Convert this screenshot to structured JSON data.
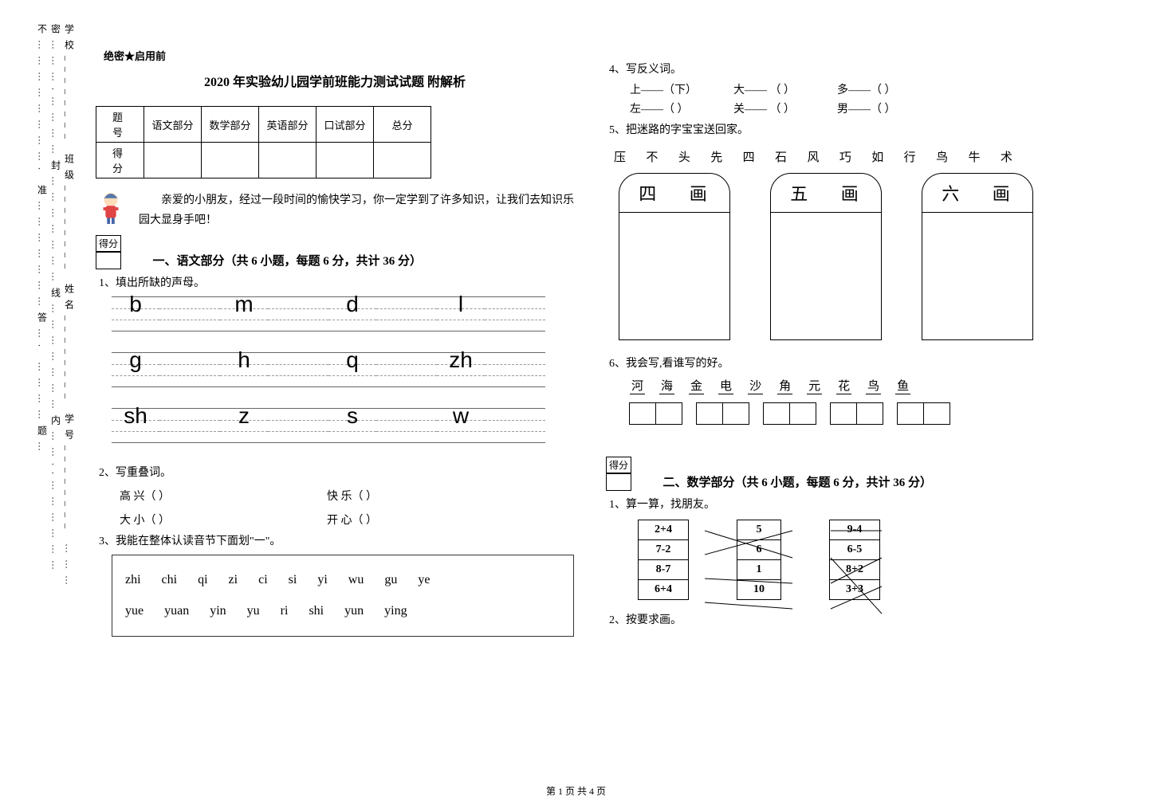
{
  "sidebar_text": "学校________ 班级________ 姓名________ 学号________    ………密……….…………封…………………线…………………内……..………………不……………………. 准…………………答…. …………题…",
  "confidential": "绝密★启用前",
  "title": "2020 年实验幼儿园学前班能力测试试题 附解析",
  "score_headers": [
    "题 号",
    "语文部分",
    "数学部分",
    "英语部分",
    "口试部分",
    "总分"
  ],
  "score_row_label": "得 分",
  "intro": "亲爱的小朋友，经过一段时间的愉快学习，你一定学到了许多知识，让我们去知识乐园大显身手吧！",
  "score_label": "得分",
  "section1": "一、语文部分（共 6 小题，每题 6 分，共计 36 分）",
  "q1": "1、填出所缺的声母。",
  "pinyin": {
    "rows": [
      [
        "b",
        "m",
        "d",
        "l"
      ],
      [
        "g",
        "h",
        "q",
        "zh"
      ],
      [
        "sh",
        "z",
        "s",
        "w"
      ]
    ]
  },
  "q2": "2、写重叠词。",
  "q2_pairs": [
    {
      "l": "高 兴（          ）",
      "r": "快 乐（          ）"
    },
    {
      "l": "大 小（          ）",
      "r": "开 心（          ）"
    }
  ],
  "q3": "3、我能在整体认读音节下面划\"一\"。",
  "syllables": {
    "r1": [
      "zhi",
      "chi",
      "qi",
      "zi",
      "ci",
      "si",
      "yi",
      "wu",
      "gu",
      "ye"
    ],
    "r2": [
      "yue",
      "yuan",
      "yin",
      "yu",
      "ri",
      "shi",
      "yun",
      "ying"
    ]
  },
  "q4": "4、写反义词。",
  "q4_lines": [
    [
      {
        "t": "上——（下）"
      },
      {
        "t": "大—— （  ）"
      },
      {
        "t": "多——（  ）"
      }
    ],
    [
      {
        "t": "左——（  ）"
      },
      {
        "t": "关—— （  ）"
      },
      {
        "t": "男——（  ）"
      }
    ]
  ],
  "q5": "5、把迷路的字宝宝送回家。",
  "q5_chars": [
    "压",
    "不",
    "头",
    "先",
    "四",
    "石",
    "风",
    "巧",
    "如",
    "行",
    "鸟",
    "牛",
    "术"
  ],
  "stroke_labels": [
    "四 画",
    "五 画",
    "六 画"
  ],
  "q6": "6、我会写,看谁写的好。",
  "q6_chars": [
    "河",
    "海",
    "金",
    "电",
    "沙",
    "角",
    "元",
    "花",
    "鸟",
    "鱼"
  ],
  "section2": "二、数学部分（共 6 小题，每题 6 分，共计 36 分）",
  "m1": "1、算一算，找朋友。",
  "match_left": [
    "2+4",
    "7-2",
    "8-7",
    "6+4"
  ],
  "match_mid": [
    "5",
    "6",
    "1",
    "10"
  ],
  "match_right": [
    "9-4",
    "6-5",
    "8+2",
    "3+3"
  ],
  "m2": "2、按要求画。",
  "footer": "第 1 页 共 4 页",
  "colors": {
    "text": "#000000",
    "border": "#000000",
    "dash": "#999999",
    "cartoon_body": "#ffaa66",
    "cartoon_shirt": "#e04444"
  }
}
